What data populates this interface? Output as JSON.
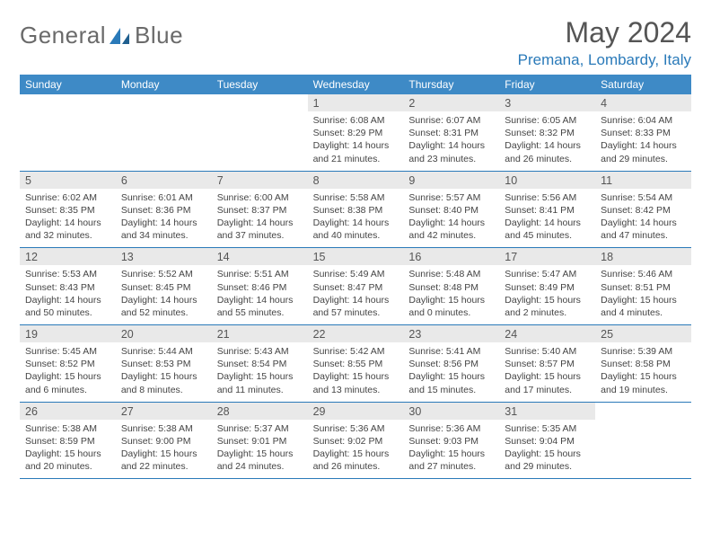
{
  "brand": {
    "word1": "General",
    "word2": "Blue"
  },
  "title": "May 2024",
  "location": "Premana, Lombardy, Italy",
  "colors": {
    "header_bg": "#3e8ac6",
    "accent": "#2a7ab9",
    "daynum_bg": "#e9e9e9",
    "text": "#444444"
  },
  "daysOfWeek": [
    "Sunday",
    "Monday",
    "Tuesday",
    "Wednesday",
    "Thursday",
    "Friday",
    "Saturday"
  ],
  "weeks": [
    [
      null,
      null,
      null,
      {
        "n": "1",
        "sr": "Sunrise: 6:08 AM",
        "ss": "Sunset: 8:29 PM",
        "d1": "Daylight: 14 hours",
        "d2": "and 21 minutes."
      },
      {
        "n": "2",
        "sr": "Sunrise: 6:07 AM",
        "ss": "Sunset: 8:31 PM",
        "d1": "Daylight: 14 hours",
        "d2": "and 23 minutes."
      },
      {
        "n": "3",
        "sr": "Sunrise: 6:05 AM",
        "ss": "Sunset: 8:32 PM",
        "d1": "Daylight: 14 hours",
        "d2": "and 26 minutes."
      },
      {
        "n": "4",
        "sr": "Sunrise: 6:04 AM",
        "ss": "Sunset: 8:33 PM",
        "d1": "Daylight: 14 hours",
        "d2": "and 29 minutes."
      }
    ],
    [
      {
        "n": "5",
        "sr": "Sunrise: 6:02 AM",
        "ss": "Sunset: 8:35 PM",
        "d1": "Daylight: 14 hours",
        "d2": "and 32 minutes."
      },
      {
        "n": "6",
        "sr": "Sunrise: 6:01 AM",
        "ss": "Sunset: 8:36 PM",
        "d1": "Daylight: 14 hours",
        "d2": "and 34 minutes."
      },
      {
        "n": "7",
        "sr": "Sunrise: 6:00 AM",
        "ss": "Sunset: 8:37 PM",
        "d1": "Daylight: 14 hours",
        "d2": "and 37 minutes."
      },
      {
        "n": "8",
        "sr": "Sunrise: 5:58 AM",
        "ss": "Sunset: 8:38 PM",
        "d1": "Daylight: 14 hours",
        "d2": "and 40 minutes."
      },
      {
        "n": "9",
        "sr": "Sunrise: 5:57 AM",
        "ss": "Sunset: 8:40 PM",
        "d1": "Daylight: 14 hours",
        "d2": "and 42 minutes."
      },
      {
        "n": "10",
        "sr": "Sunrise: 5:56 AM",
        "ss": "Sunset: 8:41 PM",
        "d1": "Daylight: 14 hours",
        "d2": "and 45 minutes."
      },
      {
        "n": "11",
        "sr": "Sunrise: 5:54 AM",
        "ss": "Sunset: 8:42 PM",
        "d1": "Daylight: 14 hours",
        "d2": "and 47 minutes."
      }
    ],
    [
      {
        "n": "12",
        "sr": "Sunrise: 5:53 AM",
        "ss": "Sunset: 8:43 PM",
        "d1": "Daylight: 14 hours",
        "d2": "and 50 minutes."
      },
      {
        "n": "13",
        "sr": "Sunrise: 5:52 AM",
        "ss": "Sunset: 8:45 PM",
        "d1": "Daylight: 14 hours",
        "d2": "and 52 minutes."
      },
      {
        "n": "14",
        "sr": "Sunrise: 5:51 AM",
        "ss": "Sunset: 8:46 PM",
        "d1": "Daylight: 14 hours",
        "d2": "and 55 minutes."
      },
      {
        "n": "15",
        "sr": "Sunrise: 5:49 AM",
        "ss": "Sunset: 8:47 PM",
        "d1": "Daylight: 14 hours",
        "d2": "and 57 minutes."
      },
      {
        "n": "16",
        "sr": "Sunrise: 5:48 AM",
        "ss": "Sunset: 8:48 PM",
        "d1": "Daylight: 15 hours",
        "d2": "and 0 minutes."
      },
      {
        "n": "17",
        "sr": "Sunrise: 5:47 AM",
        "ss": "Sunset: 8:49 PM",
        "d1": "Daylight: 15 hours",
        "d2": "and 2 minutes."
      },
      {
        "n": "18",
        "sr": "Sunrise: 5:46 AM",
        "ss": "Sunset: 8:51 PM",
        "d1": "Daylight: 15 hours",
        "d2": "and 4 minutes."
      }
    ],
    [
      {
        "n": "19",
        "sr": "Sunrise: 5:45 AM",
        "ss": "Sunset: 8:52 PM",
        "d1": "Daylight: 15 hours",
        "d2": "and 6 minutes."
      },
      {
        "n": "20",
        "sr": "Sunrise: 5:44 AM",
        "ss": "Sunset: 8:53 PM",
        "d1": "Daylight: 15 hours",
        "d2": "and 8 minutes."
      },
      {
        "n": "21",
        "sr": "Sunrise: 5:43 AM",
        "ss": "Sunset: 8:54 PM",
        "d1": "Daylight: 15 hours",
        "d2": "and 11 minutes."
      },
      {
        "n": "22",
        "sr": "Sunrise: 5:42 AM",
        "ss": "Sunset: 8:55 PM",
        "d1": "Daylight: 15 hours",
        "d2": "and 13 minutes."
      },
      {
        "n": "23",
        "sr": "Sunrise: 5:41 AM",
        "ss": "Sunset: 8:56 PM",
        "d1": "Daylight: 15 hours",
        "d2": "and 15 minutes."
      },
      {
        "n": "24",
        "sr": "Sunrise: 5:40 AM",
        "ss": "Sunset: 8:57 PM",
        "d1": "Daylight: 15 hours",
        "d2": "and 17 minutes."
      },
      {
        "n": "25",
        "sr": "Sunrise: 5:39 AM",
        "ss": "Sunset: 8:58 PM",
        "d1": "Daylight: 15 hours",
        "d2": "and 19 minutes."
      }
    ],
    [
      {
        "n": "26",
        "sr": "Sunrise: 5:38 AM",
        "ss": "Sunset: 8:59 PM",
        "d1": "Daylight: 15 hours",
        "d2": "and 20 minutes."
      },
      {
        "n": "27",
        "sr": "Sunrise: 5:38 AM",
        "ss": "Sunset: 9:00 PM",
        "d1": "Daylight: 15 hours",
        "d2": "and 22 minutes."
      },
      {
        "n": "28",
        "sr": "Sunrise: 5:37 AM",
        "ss": "Sunset: 9:01 PM",
        "d1": "Daylight: 15 hours",
        "d2": "and 24 minutes."
      },
      {
        "n": "29",
        "sr": "Sunrise: 5:36 AM",
        "ss": "Sunset: 9:02 PM",
        "d1": "Daylight: 15 hours",
        "d2": "and 26 minutes."
      },
      {
        "n": "30",
        "sr": "Sunrise: 5:36 AM",
        "ss": "Sunset: 9:03 PM",
        "d1": "Daylight: 15 hours",
        "d2": "and 27 minutes."
      },
      {
        "n": "31",
        "sr": "Sunrise: 5:35 AM",
        "ss": "Sunset: 9:04 PM",
        "d1": "Daylight: 15 hours",
        "d2": "and 29 minutes."
      },
      null
    ]
  ]
}
